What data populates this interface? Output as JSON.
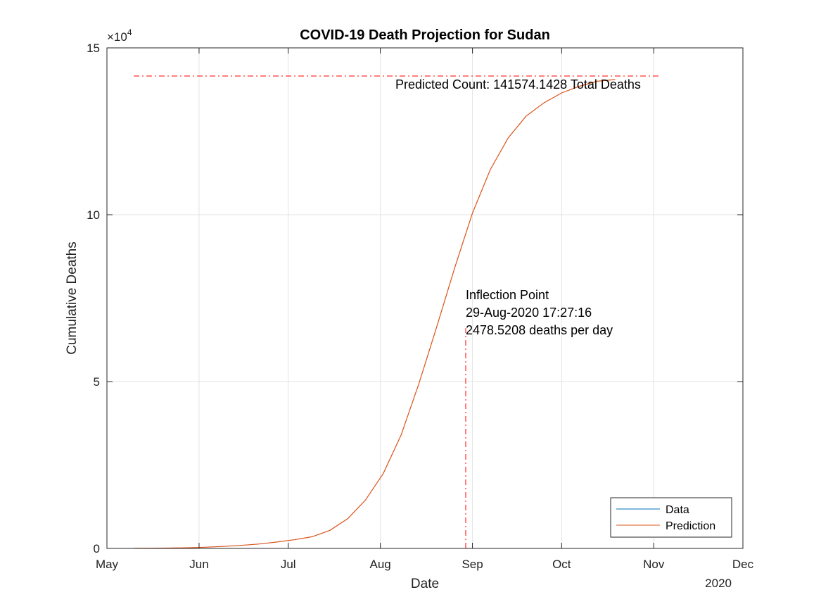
{
  "chart_data": {
    "type": "line",
    "title": "COVID-19 Death Projection for Sudan",
    "xlabel": "Date",
    "ylabel": "Cumulative Deaths",
    "x_axis_kind": "date",
    "xlim": [
      "2020-05-01",
      "2020-12-01"
    ],
    "x_ticks": [
      "2020-05-01",
      "2020-06-01",
      "2020-07-01",
      "2020-08-01",
      "2020-09-01",
      "2020-10-01",
      "2020-11-01",
      "2020-12-01"
    ],
    "x_tick_labels": [
      "May",
      "Jun",
      "Jul",
      "Aug",
      "Sep",
      "Oct",
      "Nov",
      "Dec"
    ],
    "x_year_label": "2020",
    "ylim": [
      0,
      150000
    ],
    "y_ticks": [
      0,
      50000,
      100000,
      150000
    ],
    "y_tick_labels": [
      "0",
      "5",
      "10",
      "15"
    ],
    "y_exponent_prefix": "×10",
    "y_exponent_power": "4",
    "grid": true,
    "legend_placement": "bottom-right",
    "series": [
      {
        "name": "Data",
        "color": "#0072BD",
        "points": []
      },
      {
        "name": "Prediction",
        "color": "#D95319",
        "points": [
          [
            "2020-05-10",
            30
          ],
          [
            "2020-05-16",
            60
          ],
          [
            "2020-05-22",
            110
          ],
          [
            "2020-05-28",
            200
          ],
          [
            "2020-06-03",
            360
          ],
          [
            "2020-06-09",
            600
          ],
          [
            "2020-06-15",
            900
          ],
          [
            "2020-06-21",
            1300
          ],
          [
            "2020-06-27",
            1900
          ],
          [
            "2020-07-03",
            2600
          ],
          [
            "2020-07-09",
            3500
          ],
          [
            "2020-07-15",
            5400
          ],
          [
            "2020-07-21",
            8900
          ],
          [
            "2020-07-27",
            14500
          ],
          [
            "2020-08-02",
            22500
          ],
          [
            "2020-08-08",
            34000
          ],
          [
            "2020-08-14",
            49500
          ],
          [
            "2020-08-20",
            66500
          ],
          [
            "2020-08-26",
            84000
          ],
          [
            "2020-09-01",
            100500
          ],
          [
            "2020-09-07",
            113500
          ],
          [
            "2020-09-13",
            123000
          ],
          [
            "2020-09-19",
            129500
          ],
          [
            "2020-09-25",
            133500
          ],
          [
            "2020-10-01",
            136500
          ],
          [
            "2020-10-07",
            138500
          ],
          [
            "2020-10-13",
            140000
          ],
          [
            "2020-10-19",
            140500
          ]
        ]
      }
    ],
    "reference_lines": {
      "color": "#FF0000",
      "total_deaths_y": 141574.1428,
      "total_line_start": "2020-05-10",
      "total_line_end": "2020-11-03",
      "inflection_date": "2020-08-29T17:27:16",
      "inflection_line_top_y": 66000
    },
    "annotations": {
      "total": "Predicted Count: 141574.1428 Total Deaths",
      "inflection": [
        "Inflection Point",
        "29-Aug-2020 17:27:16",
        "2478.5208 deaths per day"
      ]
    }
  }
}
